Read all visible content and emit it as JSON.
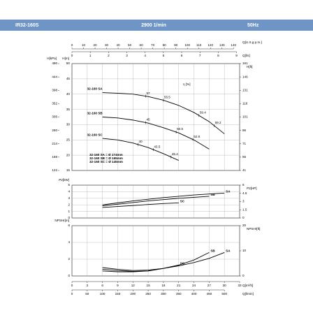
{
  "header": {
    "model": "IR32-160S",
    "speed": "2900 1/min",
    "frequency": "50Hz"
  },
  "chart_data": [
    {
      "type": "line",
      "ylabel": "H[m]",
      "ylim": [
        15,
        50
      ],
      "yticks": [
        15,
        20,
        25,
        30,
        35,
        40,
        45,
        50
      ],
      "y2label": "H[ft]",
      "y2lim": [
        41,
        161
      ],
      "y2ticks": [
        41,
        56,
        71,
        86,
        101,
        116,
        131,
        146,
        161
      ],
      "y3label": "H[kPa]",
      "y3lim": [
        122,
        490
      ],
      "y3ticks": [
        122,
        168,
        214,
        260,
        306,
        352,
        398,
        444,
        490
      ],
      "x2label": "Q[U.S.g.p.m.]",
      "x2lim": [
        0,
        145.3
      ],
      "x2ticks": [
        0,
        10,
        20,
        30,
        40,
        50,
        60,
        70,
        80,
        90,
        100,
        110,
        120,
        130,
        140
      ],
      "x3label": "Q[l/s]",
      "x3lim": [
        0,
        9.17
      ],
      "x3ticks": [
        0,
        1,
        2,
        3,
        4,
        5,
        6,
        7,
        8,
        9
      ],
      "annotation": "η [%]",
      "name_position": "start",
      "grid": true,
      "notes": [
        "32-160 SA = Ø 174mm",
        "32-160 SB = Ø 165mm",
        "32-160 SC = Ø 145mm"
      ],
      "x": [
        6,
        9,
        12,
        15,
        18,
        21,
        24,
        27,
        30
      ],
      "series": [
        {
          "name": "32-160 SA",
          "color": "#000000",
          "values": [
            40.5,
            40.3,
            40,
            39.2,
            38,
            36.3,
            34,
            31,
            27
          ],
          "efficiency_x": [
            14.5,
            18,
            25,
            28
          ],
          "efficiency": [
            57,
            55.5,
            59.4,
            59.2
          ]
        },
        {
          "name": "32-160 SB",
          "color": "#000000",
          "values": [
            32.5,
            32.2,
            31.5,
            30.5,
            29,
            27.3,
            25,
            22,
            null
          ],
          "efficiency_x": [
            14.5,
            20.5,
            23.8
          ],
          "efficiency": [
            45,
            50.5,
            52.8
          ]
        },
        {
          "name": "32-160 SC",
          "color": "#000000",
          "values": [
            25.5,
            25,
            24,
            22.5,
            20.5,
            18.3,
            null,
            null,
            null
          ],
          "efficiency_x": [
            13,
            16,
            19.5
          ],
          "efficiency": [
            40,
            43.5,
            45.4
          ]
        }
      ]
    },
    {
      "type": "line",
      "ylabel": "P2[kW]",
      "ylim": [
        0,
        5
      ],
      "yticks": [
        0,
        1,
        2,
        3,
        4,
        5
      ],
      "y2label": "P2[HP]",
      "y2lim": [
        0,
        6
      ],
      "y2ticks": [
        0,
        1.5,
        3,
        4.5,
        6
      ],
      "name_position": "end",
      "grid": true,
      "x": [
        6,
        9,
        12,
        15,
        18,
        21,
        24,
        27,
        30
      ],
      "series": [
        {
          "name": "SA",
          "color": "#000000",
          "values": [
            2.0,
            2.3,
            2.6,
            2.85,
            3.1,
            3.3,
            3.5,
            3.65,
            3.8
          ]
        },
        {
          "name": "SB",
          "color": "#000000",
          "values": [
            1.85,
            2.1,
            2.35,
            2.6,
            2.8,
            3.0,
            3.15,
            3.3,
            null
          ]
        },
        {
          "name": "SC",
          "color": "#000000",
          "values": [
            1.6,
            1.75,
            1.9,
            2.05,
            2.2,
            2.3,
            null,
            null,
            null
          ]
        }
      ]
    },
    {
      "type": "line",
      "ylabel": "NPSHr[m]",
      "ylim": [
        0,
        6
      ],
      "yticks": [
        0,
        2,
        4,
        6
      ],
      "y2label": "NPSHr[ft]",
      "y2lim": [
        0,
        20
      ],
      "y2ticks": [
        0,
        10,
        20
      ],
      "name_position": "end",
      "grid": true,
      "xlabel": "Q[m³/h]",
      "xlim": [
        0,
        33
      ],
      "xticks": [
        0,
        3,
        6,
        9,
        12,
        15,
        18,
        21,
        24,
        27,
        30,
        33
      ],
      "x2label": "Q[l/min]",
      "x2lim": [
        0,
        550
      ],
      "x2ticks": [
        0,
        50,
        100,
        150,
        200,
        250,
        300,
        350,
        400,
        450,
        500
      ],
      "x": [
        6,
        9,
        12,
        15,
        18,
        21,
        24,
        27,
        30
      ],
      "series": [
        {
          "name": "SA",
          "color": "#000000",
          "values": [
            1.0,
            0.8,
            0.65,
            0.7,
            0.9,
            1.2,
            1.6,
            2.1,
            2.8
          ]
        },
        {
          "name": "SB",
          "color": "#000000",
          "values": [
            0.8,
            0.65,
            0.55,
            0.6,
            0.9,
            1.3,
            1.9,
            2.8,
            null
          ]
        },
        {
          "name": "SC",
          "color": "#000000",
          "values": [
            0.6,
            0.5,
            0.5,
            0.6,
            0.9,
            1.3,
            null,
            null,
            null
          ]
        }
      ]
    }
  ]
}
